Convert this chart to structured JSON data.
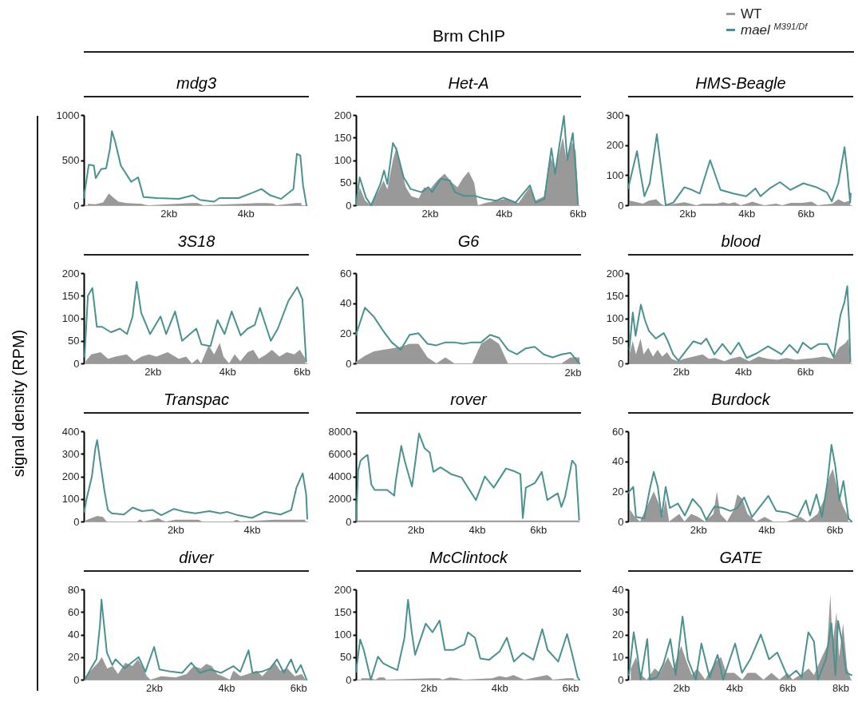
{
  "chart_data": [
    {
      "type": "line",
      "title": "mdg3",
      "xlim": [
        -0.2,
        5.6
      ],
      "ylim": [
        0,
        1000
      ],
      "xticks": [
        {
          "value": 2,
          "label": "2kb"
        },
        {
          "value": 4,
          "label": "4kb"
        }
      ],
      "yticks": [
        0,
        500,
        1000
      ],
      "series": [
        {
          "color": "#999999",
          "type": "area",
          "x": [
            -0.1,
            0.1,
            0.3,
            0.45,
            0.55,
            0.7,
            0.9,
            1.1,
            1.3,
            1.4,
            1.5,
            2.6,
            2.75,
            2.9,
            4.1,
            4.3,
            4.5,
            4.7,
            4.8,
            5.3,
            5.45
          ],
          "values": [
            15,
            10,
            30,
            130,
            90,
            40,
            25,
            20,
            15,
            5,
            0,
            25,
            25,
            0,
            20,
            25,
            25,
            20,
            0,
            25,
            25
          ]
        },
        {
          "color": "#4a918f",
          "type": "line",
          "x": [
            -0.2,
            -0.07,
            0.06,
            0.11,
            0.25,
            0.38,
            0.48,
            0.53,
            0.61,
            0.76,
            1.03,
            1.21,
            1.35,
            1.7,
            2.27,
            2.63,
            2.81,
            3.18,
            3.32,
            3.82,
            4.19,
            4.41,
            4.64,
            4.92,
            5.24,
            5.33,
            5.42,
            5.49,
            5.58
          ],
          "values": [
            80,
            450,
            440,
            300,
            400,
            410,
            630,
            820,
            710,
            440,
            260,
            310,
            90,
            80,
            70,
            110,
            60,
            40,
            80,
            80,
            140,
            180,
            110,
            70,
            180,
            570,
            550,
            220,
            0
          ]
        }
      ]
    },
    {
      "type": "line",
      "title": "Het-A",
      "annotations": [
        "Brm ChIP"
      ],
      "xlim": [
        0,
        6.05
      ],
      "ylim": [
        0,
        200
      ],
      "xticks": [
        {
          "value": 2,
          "label": "2kb"
        },
        {
          "value": 4,
          "label": "4kb"
        },
        {
          "value": 6,
          "label": "6kb"
        }
      ],
      "yticks": [
        0,
        50,
        100,
        150,
        200
      ],
      "series": [
        {
          "color": "#999999",
          "type": "area",
          "x": [
            0.0,
            0.1,
            0.25,
            0.4,
            0.6,
            0.75,
            0.85,
            1.0,
            1.1,
            1.2,
            1.35,
            1.5,
            1.7,
            1.85,
            2.0,
            2.2,
            2.4,
            2.6,
            2.75,
            2.9,
            3.05,
            3.2,
            3.3,
            3.5,
            3.8,
            4.1,
            4.4,
            4.7,
            4.85,
            5.1,
            5.25,
            5.4,
            5.6,
            5.7,
            5.85,
            5.95,
            6.0
          ],
          "values": [
            0,
            40,
            10,
            0,
            30,
            55,
            35,
            100,
            130,
            90,
            40,
            20,
            15,
            40,
            35,
            55,
            70,
            50,
            40,
            60,
            75,
            50,
            0,
            5,
            10,
            15,
            5,
            40,
            10,
            20,
            110,
            80,
            150,
            100,
            140,
            120,
            40
          ]
        },
        {
          "color": "#4a918f",
          "type": "line",
          "x": [
            0.0,
            0.1,
            0.27,
            0.41,
            0.66,
            0.76,
            0.85,
            1.0,
            1.1,
            1.29,
            1.48,
            1.77,
            1.96,
            2.06,
            2.3,
            2.54,
            2.68,
            2.92,
            3.21,
            3.5,
            3.79,
            3.99,
            4.32,
            4.71,
            4.86,
            5.1,
            5.29,
            5.39,
            5.63,
            5.72,
            5.87,
            5.97,
            6.01
          ],
          "values": [
            2,
            62,
            17,
            0,
            47,
            77,
            47,
            138,
            123,
            62,
            36,
            29,
            40,
            29,
            59,
            55,
            29,
            21,
            21,
            14,
            10,
            17,
            6,
            44,
            6,
            14,
            126,
            70,
            198,
            100,
            160,
            55,
            2
          ]
        }
      ]
    },
    {
      "type": "line",
      "title": "HMS-Beagle",
      "legend": "top right",
      "xlim": [
        0,
        7.55
      ],
      "ylim": [
        0,
        300
      ],
      "xticks": [
        {
          "value": 2,
          "label": "2kb"
        },
        {
          "value": 4,
          "label": "4kb"
        },
        {
          "value": 6,
          "label": "6kb"
        }
      ],
      "yticks": [
        0,
        100,
        200,
        300
      ],
      "series": [
        {
          "name": "WT",
          "color": "#999999",
          "type": "area",
          "x": [
            0.05,
            0.3,
            0.5,
            0.7,
            0.95,
            1.1,
            1.2,
            1.6,
            1.9,
            2.1,
            2.3,
            2.5,
            3.0,
            3.2,
            3.4,
            3.6,
            3.8,
            4.0,
            4.2,
            4.4,
            4.6,
            5.0,
            5.2,
            5.5,
            5.9,
            6.2,
            6.4,
            6.9,
            7.1,
            7.3,
            7.5
          ],
          "values": [
            15,
            10,
            5,
            15,
            20,
            5,
            0,
            5,
            10,
            5,
            0,
            5,
            5,
            10,
            5,
            10,
            0,
            5,
            12,
            5,
            0,
            5,
            0,
            8,
            8,
            12,
            0,
            5,
            20,
            10,
            15
          ]
        },
        {
          "name": "mael $^{M391/Df}$",
          "color": "#4a918f",
          "type": "line",
          "x": [
            0.0,
            0.3,
            0.4,
            0.55,
            0.73,
            0.97,
            1.09,
            1.27,
            1.53,
            1.9,
            2.16,
            2.42,
            2.77,
            3.12,
            3.55,
            3.99,
            4.3,
            4.47,
            4.78,
            5.13,
            5.48,
            5.92,
            6.36,
            6.71,
            6.88,
            7.1,
            7.31,
            7.41,
            7.5,
            7.52
          ],
          "values": [
            56,
            180,
            116,
            30,
            73,
            236,
            141,
            0,
            9,
            60,
            51,
            39,
            150,
            51,
            39,
            30,
            56,
            30,
            56,
            77,
            51,
            73,
            60,
            43,
            13,
            73,
            193,
            107,
            9,
            39
          ]
        }
      ]
    },
    {
      "type": "line",
      "title": "3S18",
      "xlim": [
        0.15,
        6.15
      ],
      "ylim": [
        0,
        200
      ],
      "xticks": [
        {
          "value": 2,
          "label": "2kb"
        },
        {
          "value": 4,
          "label": "4kb"
        },
        {
          "value": 6,
          "label": "6kb"
        }
      ],
      "yticks": [
        0,
        50,
        100,
        150,
        200
      ],
      "series": [
        {
          "color": "#999999",
          "type": "area",
          "x": [
            0.2,
            0.35,
            0.6,
            0.8,
            1.0,
            1.3,
            1.5,
            1.7,
            1.9,
            2.1,
            2.4,
            2.7,
            2.9,
            3.05,
            3.2,
            3.3,
            3.5,
            3.65,
            3.8,
            3.9,
            4.05,
            4.2,
            4.35,
            4.55,
            4.7,
            4.85,
            5.05,
            5.2,
            5.4,
            5.6,
            5.8,
            5.95,
            6.1
          ],
          "values": [
            5,
            20,
            25,
            10,
            15,
            20,
            5,
            15,
            20,
            15,
            25,
            10,
            15,
            0,
            10,
            0,
            40,
            20,
            45,
            15,
            0,
            20,
            5,
            25,
            30,
            10,
            20,
            30,
            15,
            25,
            20,
            30,
            10
          ]
        },
        {
          "color": "#4a918f",
          "type": "line",
          "x": [
            0.17,
            0.26,
            0.38,
            0.5,
            0.64,
            0.88,
            1.12,
            1.31,
            1.46,
            1.57,
            1.69,
            1.93,
            2.21,
            2.36,
            2.6,
            2.79,
            3.17,
            3.31,
            3.55,
            3.74,
            3.93,
            4.12,
            4.36,
            4.55,
            4.74,
            4.88,
            5.17,
            5.36,
            5.64,
            5.88,
            6.02,
            6.12
          ],
          "values": [
            15,
            150,
            167,
            81,
            81,
            69,
            77,
            65,
            104,
            181,
            112,
            65,
            104,
            65,
            115,
            50,
            77,
            42,
            38,
            96,
            65,
            115,
            62,
            77,
            85,
            123,
            50,
            77,
            138,
            169,
            142,
            4
          ]
        }
      ]
    },
    {
      "type": "line",
      "title": "G6",
      "annotations": [
        "2kb"
      ],
      "categories": [
        null,
        null,
        null,
        null,
        null,
        null,
        null,
        null,
        null,
        null,
        null,
        null,
        null,
        null,
        null,
        null,
        null,
        null,
        null,
        null,
        null,
        null,
        null,
        null,
        null,
        null
      ],
      "ylim": [
        0,
        60
      ],
      "yticks": [
        0,
        20,
        40,
        60
      ],
      "series": [
        {
          "color": "#999999",
          "type": "area",
          "values": [
            1,
            5,
            8,
            9,
            10,
            11,
            13,
            13,
            4,
            0,
            4,
            0,
            0,
            0,
            13,
            17,
            13,
            0,
            0,
            0,
            0,
            0,
            0,
            0,
            4,
            4
          ]
        },
        {
          "color": "#4a918f",
          "type": "line",
          "values": [
            19,
            37,
            31,
            22,
            14,
            9,
            19,
            20,
            13,
            12,
            14,
            14,
            13,
            14,
            14,
            19,
            17,
            9,
            6,
            10,
            11,
            6,
            4,
            6,
            7,
            0
          ]
        }
      ]
    },
    {
      "type": "line",
      "title": "blood",
      "xlim": [
        0.3,
        7.5
      ],
      "ylim": [
        0,
        200
      ],
      "xticks": [
        {
          "value": 2,
          "label": "2kb"
        },
        {
          "value": 4,
          "label": "4kb"
        },
        {
          "value": 6,
          "label": "6kb"
        }
      ],
      "yticks": [
        0,
        50,
        100,
        150,
        200
      ],
      "series": [
        {
          "color": "#999999",
          "type": "area",
          "x": [
            0.34,
            0.45,
            0.55,
            0.7,
            0.8,
            0.95,
            1.1,
            1.25,
            1.4,
            1.55,
            1.7,
            1.9,
            2.1,
            2.4,
            2.7,
            2.9,
            3.1,
            3.4,
            3.6,
            3.9,
            4.2,
            4.5,
            4.8,
            5.1,
            5.4,
            5.7,
            6.0,
            6.3,
            6.6,
            6.9,
            7.1,
            7.3,
            7.4,
            7.45
          ],
          "values": [
            20,
            50,
            20,
            55,
            20,
            35,
            15,
            30,
            15,
            25,
            10,
            5,
            10,
            15,
            20,
            10,
            12,
            5,
            10,
            15,
            5,
            15,
            10,
            8,
            12,
            8,
            10,
            12,
            15,
            10,
            35,
            45,
            55,
            5
          ]
        },
        {
          "color": "#4a918f",
          "type": "line",
          "x": [
            0.34,
            0.45,
            0.54,
            0.71,
            0.84,
            0.97,
            1.19,
            1.45,
            1.58,
            1.75,
            1.92,
            2.14,
            2.4,
            2.65,
            2.82,
            3.08,
            3.34,
            3.6,
            3.86,
            4.12,
            4.46,
            4.81,
            5.24,
            5.5,
            5.76,
            5.93,
            6.19,
            6.45,
            6.71,
            6.92,
            7.14,
            7.27,
            7.36,
            7.42,
            7.46
          ],
          "values": [
            32,
            113,
            61,
            130,
            96,
            72,
            55,
            67,
            49,
            20,
            6,
            26,
            49,
            43,
            55,
            20,
            43,
            20,
            46,
            12,
            23,
            38,
            20,
            41,
            23,
            46,
            32,
            43,
            43,
            14,
            107,
            136,
            171,
            90,
            3
          ]
        }
      ]
    },
    {
      "type": "line",
      "title": "Transpac",
      "ylabel": "signal density (RPM)",
      "xlim": [
        -0.4,
        5.45
      ],
      "ylim": [
        0,
        400
      ],
      "xticks": [
        {
          "value": 2,
          "label": "2kb"
        },
        {
          "value": 4,
          "label": "4kb"
        }
      ],
      "yticks": [
        0,
        100,
        200,
        300,
        400
      ],
      "series": [
        {
          "color": "#999999",
          "type": "area",
          "x": [
            -0.35,
            -0.2,
            -0.05,
            0.1,
            0.2,
            0.3,
            1.0,
            1.05,
            1.1,
            1.15,
            1.45,
            1.55,
            1.65,
            1.75,
            2.0,
            2.6,
            2.7,
            3.5,
            3.6,
            3.7,
            4.6,
            4.8,
            5.0,
            5.1,
            5.4
          ],
          "values": [
            5,
            15,
            25,
            20,
            0,
            0,
            0,
            8,
            8,
            0,
            10,
            15,
            5,
            0,
            8,
            8,
            0,
            0,
            8,
            0,
            8,
            8,
            8,
            8,
            8
          ]
        },
        {
          "color": "#4a918f",
          "type": "line",
          "x": [
            -0.39,
            -0.33,
            -0.19,
            -0.1,
            -0.05,
            0.02,
            0.14,
            0.23,
            0.33,
            0.65,
            0.88,
            1.12,
            1.4,
            1.63,
            1.96,
            2.24,
            2.52,
            2.89,
            3.17,
            3.35,
            3.63,
            4.0,
            4.33,
            4.75,
            5.03,
            5.17,
            5.33,
            5.42,
            5.45
          ],
          "values": [
            43,
            98,
            198,
            322,
            361,
            276,
            136,
            51,
            36,
            31,
            62,
            46,
            51,
            28,
            56,
            43,
            36,
            46,
            36,
            43,
            28,
            16,
            43,
            31,
            51,
            152,
            214,
            121,
            12
          ]
        }
      ]
    },
    {
      "type": "line",
      "title": "rover",
      "xlim": [
        0.05,
        7.35
      ],
      "ylim": [
        0,
        8000
      ],
      "xticks": [
        {
          "value": 2,
          "label": "2kb"
        },
        {
          "value": 4,
          "label": "4kb"
        },
        {
          "value": 6,
          "label": "6kb"
        }
      ],
      "yticks": [
        0,
        2000,
        4000,
        6000,
        8000
      ],
      "series": [
        {
          "color": "#999999",
          "type": "area",
          "x": [
            0.06,
            2.5,
            5.0,
            7.34
          ],
          "values": [
            80,
            80,
            80,
            80
          ]
        },
        {
          "color": "#4a918f",
          "type": "line",
          "x": [
            0.06,
            0.12,
            0.2,
            0.37,
            0.43,
            0.55,
            0.66,
            1.07,
            1.3,
            1.35,
            1.53,
            1.64,
            1.88,
            2.11,
            2.29,
            2.46,
            2.58,
            2.81,
            3.16,
            3.5,
            3.97,
            4.26,
            4.55,
            4.95,
            5.18,
            5.42,
            5.5,
            5.6,
            5.89,
            6.12,
            6.3,
            6.64,
            6.76,
            6.88,
            7.11,
            7.23,
            7.34
          ],
          "values": [
            160,
            4500,
            5400,
            5800,
            5900,
            3300,
            2800,
            2800,
            2300,
            3600,
            6700,
            5400,
            3100,
            7800,
            6500,
            6100,
            4400,
            4800,
            4200,
            3900,
            1900,
            4000,
            3000,
            4700,
            4500,
            4200,
            300,
            3000,
            3400,
            4400,
            1900,
            2500,
            1300,
            2200,
            5400,
            5000,
            160
          ]
        }
      ]
    },
    {
      "type": "line",
      "title": "Burdock",
      "xlim": [
        -0.05,
        6.5
      ],
      "ylim": [
        0,
        60
      ],
      "xticks": [
        {
          "value": 2,
          "label": "2kb"
        },
        {
          "value": 4,
          "label": "4kb"
        },
        {
          "value": 6,
          "label": "6kb"
        }
      ],
      "yticks": [
        0,
        20,
        40,
        60
      ],
      "series": [
        {
          "color": "#999999",
          "type": "area",
          "x": [
            0.0,
            0.15,
            0.3,
            0.5,
            0.7,
            0.85,
            0.95,
            1.05,
            1.15,
            1.45,
            1.6,
            1.8,
            2.0,
            2.2,
            2.45,
            2.55,
            2.65,
            2.85,
            3.05,
            3.15,
            3.3,
            3.45,
            3.7,
            3.95,
            4.2,
            4.6,
            5.0,
            5.2,
            5.5,
            5.7,
            5.85,
            5.95,
            6.1,
            6.25,
            6.4
          ],
          "values": [
            8,
            3,
            0,
            10,
            20,
            12,
            3,
            15,
            0,
            5,
            0,
            5,
            3,
            0,
            5,
            20,
            5,
            0,
            8,
            18,
            15,
            5,
            0,
            3,
            0,
            0,
            3,
            0,
            5,
            15,
            30,
            35,
            20,
            10,
            3
          ]
        },
        {
          "color": "#4a918f",
          "type": "line",
          "x": [
            -0.05,
            0.1,
            0.18,
            0.42,
            0.58,
            0.7,
            0.82,
            0.93,
            1.05,
            1.17,
            1.41,
            1.61,
            1.84,
            2.08,
            2.24,
            2.48,
            2.72,
            2.95,
            3.15,
            3.35,
            3.58,
            3.82,
            4.06,
            4.29,
            4.61,
            4.92,
            5.16,
            5.28,
            5.47,
            5.63,
            5.79,
            5.91,
            6.02,
            6.14,
            6.26,
            6.41,
            6.5
          ],
          "values": [
            19,
            23,
            3,
            2,
            21,
            33,
            23,
            3,
            23,
            9,
            12,
            4,
            15,
            9,
            1,
            10,
            9,
            7,
            9,
            16,
            3,
            10,
            17,
            7,
            6,
            3,
            14,
            4,
            18,
            3,
            26,
            51,
            37,
            14,
            27,
            2,
            0
          ]
        }
      ]
    },
    {
      "type": "line",
      "title": "diver",
      "xlim": [
        0.05,
        6.25
      ],
      "ylim": [
        0,
        80
      ],
      "xticks": [
        {
          "value": 2,
          "label": "2kb"
        },
        {
          "value": 4,
          "label": "4kb"
        },
        {
          "value": 6,
          "label": "6kb"
        }
      ],
      "yticks": [
        0,
        20,
        40,
        60,
        80
      ],
      "series": [
        {
          "color": "#999999",
          "type": "area",
          "x": [
            0.1,
            0.3,
            0.45,
            0.55,
            0.7,
            0.85,
            1.0,
            1.2,
            1.4,
            1.55,
            1.7,
            1.8,
            1.9,
            2.2,
            2.6,
            2.9,
            3.1,
            3.3,
            3.45,
            3.6,
            3.75,
            3.9,
            4.1,
            4.2,
            4.4,
            4.6,
            4.85,
            5.0,
            5.2,
            5.35,
            5.5,
            5.7,
            5.9,
            6.1,
            6.2
          ],
          "values": [
            3,
            10,
            15,
            20,
            10,
            12,
            5,
            15,
            12,
            18,
            10,
            3,
            0,
            3,
            2,
            5,
            12,
            10,
            14,
            12,
            5,
            3,
            0,
            8,
            3,
            5,
            8,
            3,
            10,
            15,
            8,
            10,
            3,
            5,
            0
          ]
        },
        {
          "color": "#4a918f",
          "type": "line",
          "x": [
            0.08,
            0.25,
            0.4,
            0.5,
            0.54,
            0.61,
            0.69,
            0.84,
            0.93,
            1.18,
            1.37,
            1.57,
            1.76,
            2.0,
            2.15,
            2.49,
            2.78,
            3.03,
            3.27,
            3.56,
            3.85,
            4.2,
            4.39,
            4.62,
            4.73,
            4.98,
            5.22,
            5.41,
            5.6,
            5.8,
            5.94,
            6.07,
            6.23
          ],
          "values": [
            0,
            10,
            18,
            49,
            71,
            49,
            24,
            13,
            18,
            10,
            15,
            20,
            7,
            29,
            9,
            7,
            6,
            15,
            6,
            9,
            6,
            12,
            7,
            26,
            6,
            7,
            10,
            18,
            6,
            18,
            6,
            13,
            0
          ]
        }
      ]
    },
    {
      "type": "line",
      "title": "McClintock",
      "xlim": [
        -0.05,
        6.26
      ],
      "ylim": [
        0,
        200
      ],
      "xticks": [
        {
          "value": 2,
          "label": "2kb"
        },
        {
          "value": 4,
          "label": "4kb"
        },
        {
          "value": 6,
          "label": "6kb"
        }
      ],
      "yticks": [
        0,
        50,
        100,
        150,
        200
      ],
      "series": [
        {
          "color": "#999999",
          "type": "area",
          "x": [
            0.1,
            0.35,
            0.5,
            0.6,
            0.75,
            0.8,
            2.1,
            2.3,
            2.4,
            2.6,
            2.8,
            3.0,
            3.8,
            4.0,
            4.2,
            4.4,
            4.6,
            4.7,
            5.35,
            5.45,
            5.5,
            5.9,
            6.1
          ],
          "values": [
            3,
            3,
            0,
            5,
            5,
            0,
            3,
            3,
            0,
            5,
            3,
            0,
            3,
            8,
            5,
            10,
            3,
            0,
            10,
            5,
            0,
            3,
            3
          ]
        },
        {
          "color": "#4a918f",
          "type": "line",
          "x": [
            -0.05,
            0.07,
            0.17,
            0.37,
            0.57,
            0.72,
            0.92,
            1.12,
            1.32,
            1.42,
            1.52,
            1.62,
            1.92,
            2.11,
            2.31,
            2.46,
            2.71,
            3.01,
            3.11,
            3.31,
            3.46,
            3.71,
            4.01,
            4.21,
            4.41,
            4.66,
            4.96,
            5.21,
            5.36,
            5.66,
            5.91,
            6.06,
            6.21,
            6.26
          ],
          "values": [
            17,
            89,
            66,
            0,
            51,
            36,
            28,
            21,
            93,
            177,
            108,
            55,
            124,
            105,
            131,
            66,
            66,
            78,
            105,
            93,
            47,
            44,
            63,
            93,
            40,
            59,
            44,
            112,
            66,
            40,
            101,
            55,
            5,
            0
          ]
        }
      ]
    },
    {
      "type": "line",
      "title": "GATE",
      "xlim": [
        0,
        8.42
      ],
      "ylim": [
        0,
        40
      ],
      "xticks": [
        {
          "value": 2,
          "label": "2kb"
        },
        {
          "value": 4,
          "label": "4kb"
        },
        {
          "value": 6,
          "label": "6kb"
        },
        {
          "value": 8,
          "label": "8kb"
        }
      ],
      "yticks": [
        0,
        10,
        20,
        30,
        40
      ],
      "series": [
        {
          "color": "#999999",
          "type": "area",
          "x": [
            0.1,
            0.3,
            0.5,
            0.7,
            1.0,
            1.2,
            1.5,
            1.7,
            2.0,
            2.2,
            2.4,
            2.6,
            2.9,
            3.3,
            3.5,
            3.7,
            4.0,
            4.3,
            4.5,
            4.8,
            5.1,
            5.4,
            5.7,
            6.0,
            6.2,
            6.6,
            6.8,
            7.0,
            7.3,
            7.5,
            7.62,
            7.7,
            7.85,
            7.95,
            8.1,
            8.25,
            8.4
          ],
          "values": [
            5,
            10,
            2,
            0,
            5,
            3,
            10,
            5,
            15,
            8,
            2,
            5,
            0,
            8,
            10,
            3,
            3,
            0,
            3,
            3,
            0,
            3,
            0,
            3,
            0,
            3,
            5,
            2,
            10,
            15,
            38,
            15,
            30,
            10,
            25,
            5,
            0
          ]
        },
        {
          "color": "#4a918f",
          "type": "line",
          "x": [
            0.03,
            0.21,
            0.36,
            0.47,
            0.72,
            0.82,
            1.08,
            1.33,
            1.59,
            1.79,
            2.05,
            2.25,
            2.55,
            2.76,
            3.07,
            3.37,
            3.58,
            4.03,
            4.29,
            4.6,
            5.0,
            5.31,
            5.62,
            6.02,
            6.33,
            6.54,
            6.79,
            7.0,
            7.15,
            7.45,
            7.66,
            7.81,
            7.91,
            8.07,
            8.22,
            8.42
          ],
          "values": [
            2,
            21,
            10,
            0,
            18,
            0,
            1,
            7,
            18,
            2,
            28,
            9,
            0,
            16,
            1,
            11,
            0,
            16,
            3,
            9,
            20,
            9,
            12,
            1,
            4,
            1,
            21,
            17,
            0,
            9,
            25,
            2,
            26,
            16,
            3,
            2
          ]
        }
      ]
    }
  ]
}
